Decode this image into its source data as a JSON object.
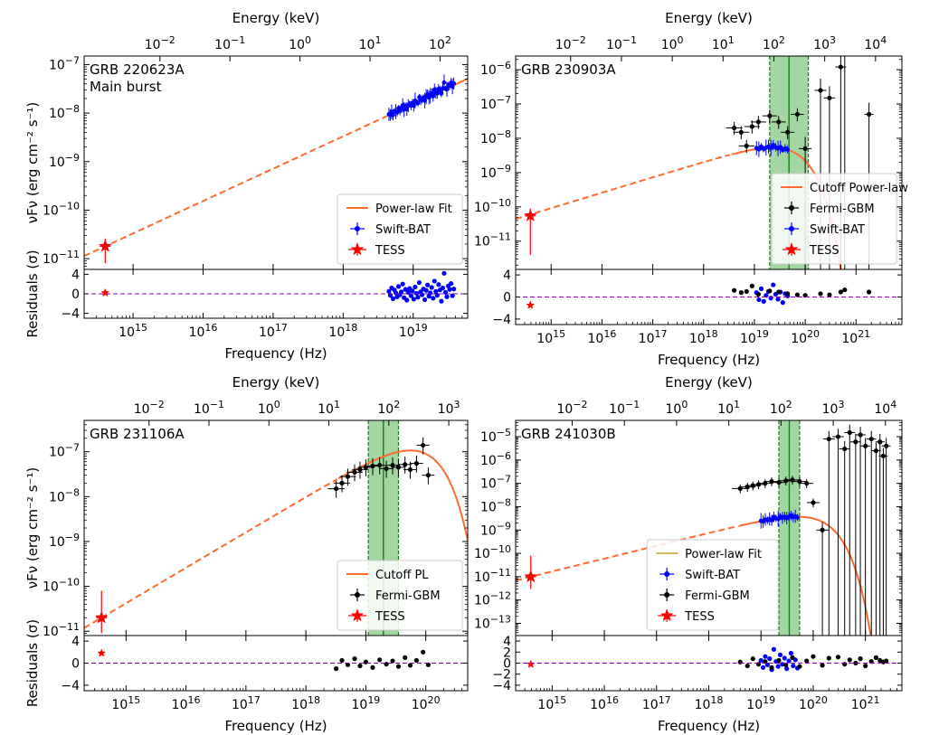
{
  "chart_data": [
    {
      "type": "scatter",
      "title": "GRB 220623A",
      "subtitle": "Main burst",
      "xlabel": "Frequency (Hz)",
      "x2label": "Energy (keV)",
      "ylabel": "νFν (erg cm⁻² s⁻¹)",
      "res_ylabel": "Residuals (σ)",
      "xscale": "log",
      "yscale": "log",
      "xlim": [
        200000000000000.0,
        6e+19
      ],
      "ylim": [
        6e-12,
        1.5e-07
      ],
      "res_ylim": [
        -5,
        5
      ],
      "x_ticks": [
        [
          "10",
          "15"
        ],
        [
          "10",
          "16"
        ],
        [
          "10",
          "17"
        ],
        [
          "10",
          "18"
        ],
        [
          "10",
          "19"
        ]
      ],
      "x_tick_values": [
        1000000000000000.0,
        1e+16,
        1e+17,
        1e+18,
        1e+19
      ],
      "y_ticks": [
        [
          "10",
          "−11"
        ],
        [
          "10",
          "−10"
        ],
        [
          "10",
          "−9"
        ],
        [
          "10",
          "−8"
        ],
        [
          "10",
          "−7"
        ]
      ],
      "y_tick_values": [
        1e-11,
        1e-10,
        1e-09,
        1e-08,
        1e-07
      ],
      "res_ticks": [
        "4",
        "0",
        "−4"
      ],
      "res_tick_values": [
        4,
        0,
        -4
      ],
      "top_ticks": [
        [
          "10",
          "−2"
        ],
        [
          "10",
          "−1"
        ],
        [
          "10",
          "0"
        ],
        [
          "10",
          "1"
        ],
        [
          "10",
          "2"
        ]
      ],
      "top_tick_values": [
        0.01,
        0.1,
        1,
        10,
        100
      ],
      "legend": [
        "Power-law Fit",
        "Swift-BAT",
        "TESS"
      ],
      "legend_loc": "lower-right",
      "model": {
        "kind": "powerlaw",
        "norm_nu": 400000000000000.0,
        "norm_flux": 1.8e-11,
        "index": 0.667,
        "cutoff_nu": null
      },
      "shaded_band": null,
      "tess": {
        "x": 400000000000000.0,
        "y": 1.8e-11,
        "ylo": 8e-12,
        "yhi": 2.6e-11,
        "res": 0.2
      },
      "swift": {
        "x_start": 4.5e+18,
        "x_end": 3.8e+19,
        "count": 48,
        "res_values": [
          0.5,
          -0.3,
          1.2,
          -1.0,
          0.8,
          0.2,
          -0.6,
          1.5,
          -0.2,
          0.4,
          2.0,
          -0.8,
          0.9,
          -1.3,
          0.3,
          1.1,
          -0.4,
          0.6,
          -1.1,
          1.4,
          0.1,
          -0.7,
          2.3,
          0.4,
          -0.2,
          1.0,
          -1.2,
          0.7,
          1.8,
          -0.5,
          0.2,
          1.3,
          -0.9,
          2.6,
          0.5,
          -0.3,
          1.9,
          0.8,
          -1.5,
          1.2,
          4.2,
          0.3,
          -0.6,
          1.6,
          0.9,
          2.1,
          -0.4,
          1.0
        ]
      },
      "gbm": null
    },
    {
      "type": "scatter",
      "title": "GRB 230903A",
      "subtitle": "",
      "xlabel": "Frequency (Hz)",
      "x2label": "Energy (keV)",
      "ylabel": "",
      "res_ylabel": "",
      "xscale": "log",
      "yscale": "log",
      "xlim": [
        200000000000000.0,
        8e+21
      ],
      "ylim": [
        1.5e-12,
        2.5e-06
      ],
      "res_ylim": [
        -5,
        5
      ],
      "x_ticks": [
        [
          "10",
          "15"
        ],
        [
          "10",
          "16"
        ],
        [
          "10",
          "17"
        ],
        [
          "10",
          "18"
        ],
        [
          "10",
          "19"
        ],
        [
          "10",
          "20"
        ],
        [
          "10",
          "21"
        ]
      ],
      "x_tick_values": [
        1000000000000000.0,
        1e+16,
        1e+17,
        1e+18,
        1e+19,
        1e+20,
        1e+21
      ],
      "y_ticks": [
        [
          "10",
          "−11"
        ],
        [
          "10",
          "−10"
        ],
        [
          "10",
          "−9"
        ],
        [
          "10",
          "−8"
        ],
        [
          "10",
          "−7"
        ],
        [
          "10",
          "−6"
        ]
      ],
      "y_tick_values": [
        1e-11,
        1e-10,
        1e-09,
        1e-08,
        1e-07,
        1e-06
      ],
      "res_ticks": [
        "4",
        "0",
        "−4"
      ],
      "res_tick_values": [
        4,
        0,
        -4
      ],
      "top_ticks": [
        [
          "10",
          "−2"
        ],
        [
          "10",
          "−1"
        ],
        [
          "10",
          "0"
        ],
        [
          "10",
          "1"
        ],
        [
          "10",
          "2"
        ],
        [
          "10",
          "3"
        ],
        [
          "10",
          "4"
        ]
      ],
      "top_tick_values": [
        0.01,
        0.1,
        1,
        10,
        100,
        1000,
        10000
      ],
      "legend": [
        "Cutoff Power-law",
        "Fermi-GBM",
        "Swift-BAT",
        "TESS"
      ],
      "legend_loc": "lower-right",
      "model": {
        "kind": "cutoff",
        "norm_nu": 390000000000000.0,
        "norm_flux": 6e-11,
        "index": 0.45,
        "cutoff_nu": 5e+19
      },
      "shaded_band": [
        2e+19,
        1.15e+20
      ],
      "tess": {
        "x": 390000000000000.0,
        "y": 5.5e-11,
        "ylo": 4e-12,
        "yhi": 9e-11,
        "res": -1.5
      },
      "swift": {
        "x_start": 1.1e+19,
        "x_end": 4.5e+19,
        "count": 14,
        "res_values": [
          0.8,
          -0.5,
          1.5,
          -0.8,
          0.3,
          1.0,
          -0.2,
          2.2,
          0.5,
          -0.4,
          0.9,
          -1.0,
          0.6,
          0.2
        ]
      },
      "gbm": {
        "points": [
          [
            4e+18,
            2e-08,
            1.2
          ],
          [
            5.5e+18,
            1.5e-08,
            0.8
          ],
          [
            7e+18,
            6e-09,
            1.0
          ],
          [
            9e+18,
            2.2e-08,
            2.0
          ],
          [
            1.2e+19,
            3e-08,
            0.5
          ],
          [
            2e+19,
            4.5e-08,
            1.1
          ],
          [
            3e+19,
            3e-08,
            0.9
          ],
          [
            4.5e+19,
            1.5e-08,
            0.6
          ],
          [
            7e+19,
            5e-08,
            0.4
          ],
          [
            1e+20,
            5e-09,
            0.3
          ],
          [
            2e+20,
            2.5e-07,
            0.6
          ],
          [
            3e+20,
            1.5e-07,
            0.4
          ],
          [
            5e+20,
            1.2e-06,
            0.9
          ],
          [
            6e+20,
            4e-06,
            1.3
          ],
          [
            1.8e+21,
            5e-08,
            0.9
          ]
        ]
      }
    },
    {
      "type": "scatter",
      "title": "GRB 231106A",
      "subtitle": "",
      "xlabel": "Frequency (Hz)",
      "x2label": "Energy (keV)",
      "ylabel": "νFν (erg cm⁻² s⁻¹)",
      "res_ylabel": "Residuals (σ)",
      "xscale": "log",
      "yscale": "log",
      "xlim": [
        200000000000000.0,
        5e+20
      ],
      "ylim": [
        8e-12,
        5e-07
      ],
      "res_ylim": [
        -5,
        5
      ],
      "x_ticks": [
        [
          "10",
          "15"
        ],
        [
          "10",
          "16"
        ],
        [
          "10",
          "17"
        ],
        [
          "10",
          "18"
        ],
        [
          "10",
          "19"
        ],
        [
          "10",
          "20"
        ]
      ],
      "x_tick_values": [
        1000000000000000.0,
        1e+16,
        1e+17,
        1e+18,
        1e+19,
        1e+20
      ],
      "y_ticks": [
        [
          "10",
          "−11"
        ],
        [
          "10",
          "−10"
        ],
        [
          "10",
          "−9"
        ],
        [
          "10",
          "−8"
        ],
        [
          "10",
          "−7"
        ]
      ],
      "y_tick_values": [
        1e-11,
        1e-10,
        1e-09,
        1e-08,
        1e-07
      ],
      "res_ticks": [
        "4",
        "0",
        "−4"
      ],
      "res_tick_values": [
        4,
        0,
        -4
      ],
      "top_ticks": [
        [
          "10",
          "−2"
        ],
        [
          "10",
          "−1"
        ],
        [
          "10",
          "0"
        ],
        [
          "10",
          "1"
        ],
        [
          "10",
          "2"
        ],
        [
          "10",
          "3"
        ]
      ],
      "top_tick_values": [
        0.01,
        0.1,
        1,
        10,
        100,
        1000
      ],
      "legend": [
        "Cutoff PL",
        "Fermi-GBM",
        "TESS"
      ],
      "legend_loc": "lower-right",
      "model": {
        "kind": "cutoff",
        "norm_nu": 390000000000000.0,
        "norm_flux": 2e-11,
        "index": 0.79,
        "cutoff_nu": 7e+19
      },
      "shaded_band": [
        1.1e+19,
        3.5e+19
      ],
      "tess": {
        "x": 390000000000000.0,
        "y": 2e-11,
        "ylo": 9e-12,
        "yhi": 8e-11,
        "res": 1.8
      },
      "swift": null,
      "gbm": {
        "points": [
          [
            3.2e+18,
            1.5e-08,
            -1.0
          ],
          [
            4e+18,
            2e-08,
            0.5
          ],
          [
            5e+18,
            2.8e-08,
            -0.3
          ],
          [
            6.5e+18,
            3.5e-08,
            0.8
          ],
          [
            8e+18,
            4e-08,
            -0.5
          ],
          [
            1e+19,
            4.5e-08,
            0.2
          ],
          [
            1.3e+19,
            4.8e-08,
            -0.8
          ],
          [
            1.7e+19,
            5e-08,
            0.6
          ],
          [
            2.2e+19,
            4.2e-08,
            -0.2
          ],
          [
            2.8e+19,
            5e-08,
            0.4
          ],
          [
            3.5e+19,
            4.5e-08,
            -0.6
          ],
          [
            4.5e+19,
            5.2e-08,
            1.0
          ],
          [
            5.5e+19,
            4e-08,
            -0.4
          ],
          [
            7e+19,
            5.5e-08,
            0.5
          ],
          [
            9e+19,
            1.4e-07,
            2.0
          ],
          [
            1.1e+20,
            3e-08,
            -0.3
          ]
        ]
      }
    },
    {
      "type": "scatter",
      "title": "GRB 241030B",
      "subtitle": "",
      "xlabel": "Frequency (Hz)",
      "x2label": "Energy (keV)",
      "ylabel": "",
      "res_ylabel": "",
      "xscale": "log",
      "yscale": "log",
      "xlim": [
        200000000000000.0,
        5e+21
      ],
      "ylim": [
        3e-14,
        5e-05
      ],
      "res_ylim": [
        -5,
        5
      ],
      "x_ticks": [
        [
          "10",
          "15"
        ],
        [
          "10",
          "16"
        ],
        [
          "10",
          "17"
        ],
        [
          "10",
          "18"
        ],
        [
          "10",
          "19"
        ],
        [
          "10",
          "20"
        ],
        [
          "10",
          "21"
        ]
      ],
      "x_tick_values": [
        1000000000000000.0,
        1e+16,
        1e+17,
        1e+18,
        1e+19,
        1e+20,
        1e+21
      ],
      "y_ticks": [
        [
          "10",
          "−13"
        ],
        [
          "10",
          "−12"
        ],
        [
          "10",
          "−11"
        ],
        [
          "10",
          "−10"
        ],
        [
          "10",
          "−9"
        ],
        [
          "10",
          "−8"
        ],
        [
          "10",
          "−7"
        ],
        [
          "10",
          "−6"
        ],
        [
          "10",
          "−5"
        ]
      ],
      "y_tick_values": [
        1e-13,
        1e-12,
        1e-11,
        1e-10,
        1e-09,
        1e-08,
        1e-07,
        1e-06,
        1e-05
      ],
      "res_ticks": [
        "4",
        "2",
        "0",
        "−2",
        "−4"
      ],
      "res_tick_values": [
        4,
        2,
        0,
        -2,
        -4
      ],
      "top_ticks": [
        [
          "10",
          "−2"
        ],
        [
          "10",
          "−1"
        ],
        [
          "10",
          "0"
        ],
        [
          "10",
          "1"
        ],
        [
          "10",
          "2"
        ],
        [
          "10",
          "3"
        ],
        [
          "10",
          "4"
        ]
      ],
      "top_tick_values": [
        0.01,
        0.1,
        1,
        10,
        100,
        1000,
        10000
      ],
      "legend": [
        "Power-law Fit",
        "Swift-BAT",
        "Fermi-GBM",
        "TESS"
      ],
      "legend_loc": "lower-center",
      "model": {
        "kind": "cutoff",
        "norm_nu": 390000000000000.0,
        "norm_flux": 1e-11,
        "index": 0.55,
        "cutoff_nu": 9e+19
      },
      "shaded_band": [
        2.2e+19,
        5.5e+19
      ],
      "tess": {
        "x": 390000000000000.0,
        "y": 1e-11,
        "ylo": 3e-12,
        "yhi": 8e-11,
        "res": -0.2
      },
      "swift": {
        "x_start": 1e+19,
        "x_end": 5e+19,
        "count": 18,
        "res_values": [
          0.5,
          -0.8,
          1.2,
          -0.3,
          0.8,
          -1.2,
          2.5,
          0.3,
          -0.6,
          1.5,
          -0.2,
          0.9,
          -1.0,
          0.4,
          1.8,
          -0.5,
          0.6,
          -0.9
        ]
      },
      "gbm": {
        "points": [
          [
            4e+18,
            6e-08,
            0.2
          ],
          [
            5.5e+18,
            7e-08,
            -0.5
          ],
          [
            7e+18,
            8e-08,
            0.8
          ],
          [
            9e+18,
            9e-08,
            -0.2
          ],
          [
            1.2e+19,
            1e-07,
            0.3
          ],
          [
            1.6e+19,
            1.2e-07,
            -0.8
          ],
          [
            2.2e+19,
            1.1e-07,
            0.5
          ],
          [
            3e+19,
            1.3e-07,
            -0.3
          ],
          [
            4e+19,
            1.4e-07,
            1.0
          ],
          [
            5.5e+19,
            1.2e-07,
            -0.6
          ],
          [
            7.5e+19,
            1e-07,
            0.4
          ],
          [
            1e+20,
            1.5e-08,
            1.2
          ],
          [
            1.5e+20,
            1e-09,
            -0.4
          ],
          [
            2e+20,
            8e-06,
            0.9
          ],
          [
            3e+20,
            1e-05,
            1.1
          ],
          [
            4e+20,
            3e-06,
            -0.2
          ],
          [
            5e+20,
            1.5e-05,
            0.6
          ],
          [
            6.5e+20,
            6e-06,
            0.0
          ],
          [
            8e+20,
            1.2e-05,
            0.8
          ],
          [
            1e+21,
            4e-06,
            -0.5
          ],
          [
            1.3e+21,
            8e-06,
            0.3
          ],
          [
            1.6e+21,
            2.5e-06,
            1.0
          ],
          [
            1.9e+21,
            6e-06,
            0.5
          ],
          [
            2.2e+21,
            1.5e-06,
            0.2
          ],
          [
            2.5e+21,
            4e-06,
            0.4
          ]
        ]
      }
    }
  ]
}
